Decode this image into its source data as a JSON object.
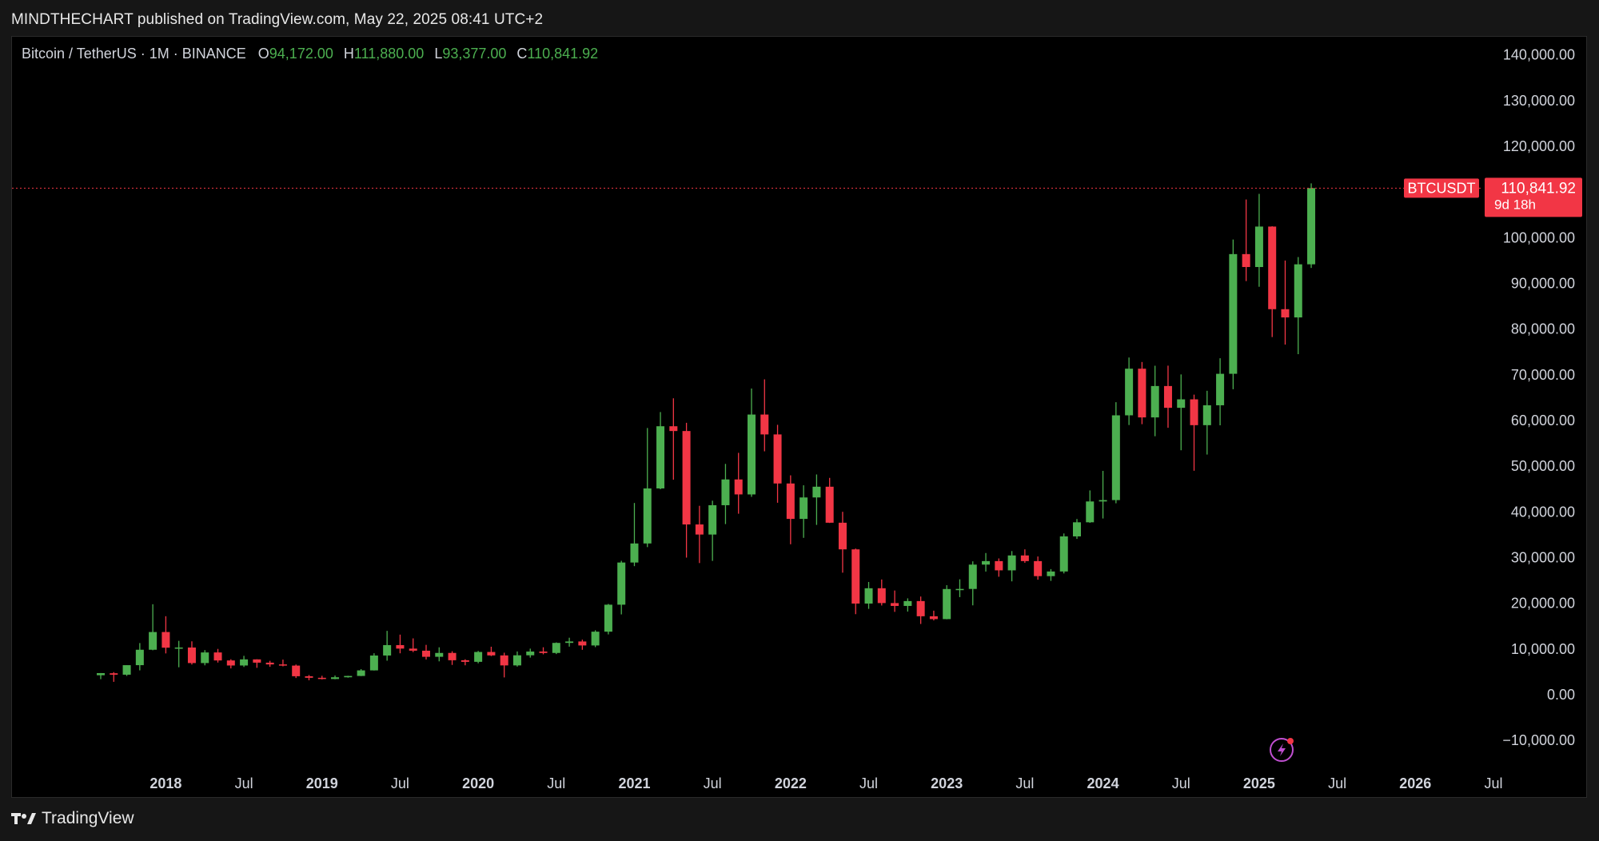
{
  "header": {
    "published_line": "MINDTHECHART published on TradingView.com, May 22, 2025 08:41 UTC+2"
  },
  "legend": {
    "symbol_line": "Bitcoin / TetherUS · 1M · BINANCE",
    "open_label": "O",
    "open_value": "94,172.00",
    "high_label": "H",
    "high_value": "111,880.00",
    "low_label": "L",
    "low_value": "93,377.00",
    "close_label": "C",
    "close_value": "110,841.92"
  },
  "price_tag": {
    "symbol": "BTCUSDT",
    "price": "110,841.92",
    "countdown": "9d 18h"
  },
  "footer": {
    "brand": "TradingView"
  },
  "colors": {
    "up": "#4caf50",
    "down": "#f23645",
    "price_line": "#f23645",
    "axis_text": "#d1d4dc",
    "background": "#000000",
    "lightning_icon": "#c04fd1"
  },
  "icons": {
    "lightning": "lightning-icon",
    "logo": "tradingview-logo-icon"
  },
  "chart_data": {
    "type": "candlestick",
    "title": "Bitcoin / TetherUS · 1M · BINANCE",
    "interval": "1M",
    "ylim": [
      -15000,
      145000
    ],
    "yticks": [
      -10000,
      0,
      10000,
      20000,
      30000,
      40000,
      50000,
      60000,
      70000,
      80000,
      90000,
      100000,
      110000,
      120000,
      130000,
      140000
    ],
    "ytick_labels": [
      "−10,000.00",
      "0.00",
      "10,000.00",
      "20,000.00",
      "30,000.00",
      "40,000.00",
      "50,000.00",
      "60,000.00",
      "70,000.00",
      "80,000.00",
      "90,000.00",
      "100,000.00",
      "110,000.00",
      "120,000.00",
      "130,000.00",
      "140,000.00"
    ],
    "x_labels": [
      {
        "label": "2018",
        "date": "2018-01",
        "bold": true
      },
      {
        "label": "Jul",
        "date": "2018-07",
        "bold": false
      },
      {
        "label": "2019",
        "date": "2019-01",
        "bold": true
      },
      {
        "label": "Jul",
        "date": "2019-07",
        "bold": false
      },
      {
        "label": "2020",
        "date": "2020-01",
        "bold": true
      },
      {
        "label": "Jul",
        "date": "2020-07",
        "bold": false
      },
      {
        "label": "2021",
        "date": "2021-01",
        "bold": true
      },
      {
        "label": "Jul",
        "date": "2021-07",
        "bold": false
      },
      {
        "label": "2022",
        "date": "2022-01",
        "bold": true
      },
      {
        "label": "Jul",
        "date": "2022-07",
        "bold": false
      },
      {
        "label": "2023",
        "date": "2023-01",
        "bold": true
      },
      {
        "label": "Jul",
        "date": "2023-07",
        "bold": false
      },
      {
        "label": "2024",
        "date": "2024-01",
        "bold": true
      },
      {
        "label": "Jul",
        "date": "2024-07",
        "bold": false
      },
      {
        "label": "2025",
        "date": "2025-01",
        "bold": true
      },
      {
        "label": "Jul",
        "date": "2025-07",
        "bold": false
      },
      {
        "label": "2026",
        "date": "2026-01",
        "bold": true
      },
      {
        "label": "Jul",
        "date": "2026-07",
        "bold": false
      }
    ],
    "last_price": 110841.92,
    "candles": [
      {
        "date": "2017-08",
        "o": 4261,
        "h": 4745,
        "l": 3400,
        "c": 4724
      },
      {
        "date": "2017-09",
        "o": 4689,
        "h": 4939,
        "l": 2817,
        "c": 4378
      },
      {
        "date": "2017-10",
        "o": 4378,
        "h": 6447,
        "l": 4110,
        "c": 6463
      },
      {
        "date": "2017-11",
        "o": 6463,
        "h": 11300,
        "l": 5325,
        "c": 9838
      },
      {
        "date": "2017-12",
        "o": 9838,
        "h": 19798,
        "l": 9722,
        "c": 13716
      },
      {
        "date": "2018-01",
        "o": 13716,
        "h": 17176,
        "l": 9035,
        "c": 10285
      },
      {
        "date": "2018-02",
        "o": 10285,
        "h": 11786,
        "l": 6000,
        "c": 10326
      },
      {
        "date": "2018-03",
        "o": 10326,
        "h": 11680,
        "l": 6600,
        "c": 6923
      },
      {
        "date": "2018-04",
        "o": 6923,
        "h": 9759,
        "l": 6425,
        "c": 9246
      },
      {
        "date": "2018-05",
        "o": 9246,
        "h": 10020,
        "l": 7032,
        "c": 7494
      },
      {
        "date": "2018-06",
        "o": 7494,
        "h": 7760,
        "l": 5755,
        "c": 6391
      },
      {
        "date": "2018-07",
        "o": 6391,
        "h": 8507,
        "l": 6072,
        "c": 7730
      },
      {
        "date": "2018-08",
        "o": 7730,
        "h": 7760,
        "l": 5880,
        "c": 7011
      },
      {
        "date": "2018-09",
        "o": 7011,
        "h": 7410,
        "l": 6100,
        "c": 6626
      },
      {
        "date": "2018-10",
        "o": 6626,
        "h": 7680,
        "l": 6205,
        "c": 6371
      },
      {
        "date": "2018-11",
        "o": 6371,
        "h": 6600,
        "l": 3652,
        "c": 4041
      },
      {
        "date": "2018-12",
        "o": 4041,
        "h": 4311,
        "l": 3156,
        "c": 3702
      },
      {
        "date": "2019-01",
        "o": 3702,
        "h": 4140,
        "l": 3349,
        "c": 3434
      },
      {
        "date": "2019-02",
        "o": 3434,
        "h": 4198,
        "l": 3373,
        "c": 3814
      },
      {
        "date": "2019-03",
        "o": 3814,
        "h": 4140,
        "l": 3733,
        "c": 4103
      },
      {
        "date": "2019-04",
        "o": 4103,
        "h": 5600,
        "l": 4067,
        "c": 5321
      },
      {
        "date": "2019-05",
        "o": 5321,
        "h": 9074,
        "l": 5290,
        "c": 8574
      },
      {
        "date": "2019-06",
        "o": 8574,
        "h": 13970,
        "l": 7444,
        "c": 10854
      },
      {
        "date": "2019-07",
        "o": 10854,
        "h": 13147,
        "l": 9060,
        "c": 10086
      },
      {
        "date": "2019-08",
        "o": 10086,
        "h": 12325,
        "l": 9320,
        "c": 9631
      },
      {
        "date": "2019-09",
        "o": 9631,
        "h": 10905,
        "l": 7710,
        "c": 8294
      },
      {
        "date": "2019-10",
        "o": 8294,
        "h": 10370,
        "l": 7300,
        "c": 9140
      },
      {
        "date": "2019-11",
        "o": 9140,
        "h": 9513,
        "l": 6515,
        "c": 7541
      },
      {
        "date": "2019-12",
        "o": 7541,
        "h": 7750,
        "l": 6435,
        "c": 7195
      },
      {
        "date": "2020-01",
        "o": 7195,
        "h": 9578,
        "l": 6871,
        "c": 9352
      },
      {
        "date": "2020-02",
        "o": 9352,
        "h": 10500,
        "l": 8445,
        "c": 8599
      },
      {
        "date": "2020-03",
        "o": 8599,
        "h": 9188,
        "l": 3782,
        "c": 6410
      },
      {
        "date": "2020-04",
        "o": 6410,
        "h": 9460,
        "l": 6150,
        "c": 8624
      },
      {
        "date": "2020-05",
        "o": 8624,
        "h": 10080,
        "l": 8117,
        "c": 9446
      },
      {
        "date": "2020-06",
        "o": 9446,
        "h": 10380,
        "l": 8833,
        "c": 9137
      },
      {
        "date": "2020-07",
        "o": 9137,
        "h": 11444,
        "l": 8893,
        "c": 11335
      },
      {
        "date": "2020-08",
        "o": 11335,
        "h": 12468,
        "l": 10518,
        "c": 11649
      },
      {
        "date": "2020-09",
        "o": 11649,
        "h": 12050,
        "l": 9825,
        "c": 10776
      },
      {
        "date": "2020-10",
        "o": 10776,
        "h": 14100,
        "l": 10416,
        "c": 13791
      },
      {
        "date": "2020-11",
        "o": 13791,
        "h": 19863,
        "l": 13195,
        "c": 19695
      },
      {
        "date": "2020-12",
        "o": 19695,
        "h": 29300,
        "l": 17572,
        "c": 28923
      },
      {
        "date": "2021-01",
        "o": 28923,
        "h": 41950,
        "l": 28130,
        "c": 33092
      },
      {
        "date": "2021-02",
        "o": 33092,
        "h": 58352,
        "l": 32296,
        "c": 45135
      },
      {
        "date": "2021-03",
        "o": 45134,
        "h": 61844,
        "l": 44950,
        "c": 58740
      },
      {
        "date": "2021-04",
        "o": 58739,
        "h": 64854,
        "l": 47044,
        "c": 57694
      },
      {
        "date": "2021-05",
        "o": 57697,
        "h": 59500,
        "l": 30000,
        "c": 37253
      },
      {
        "date": "2021-06",
        "o": 37253,
        "h": 41330,
        "l": 28805,
        "c": 35045
      },
      {
        "date": "2021-07",
        "o": 35045,
        "h": 42448,
        "l": 29278,
        "c": 41461
      },
      {
        "date": "2021-08",
        "o": 41461,
        "h": 50500,
        "l": 37332,
        "c": 47100
      },
      {
        "date": "2021-09",
        "o": 47100,
        "h": 52920,
        "l": 39600,
        "c": 43824
      },
      {
        "date": "2021-10",
        "o": 43820,
        "h": 67000,
        "l": 43283,
        "c": 61300
      },
      {
        "date": "2021-11",
        "o": 61300,
        "h": 69000,
        "l": 53256,
        "c": 56950
      },
      {
        "date": "2021-12",
        "o": 56950,
        "h": 59053,
        "l": 42000,
        "c": 46216
      },
      {
        "date": "2022-01",
        "o": 46216,
        "h": 48000,
        "l": 32917,
        "c": 38466
      },
      {
        "date": "2022-02",
        "o": 38466,
        "h": 45821,
        "l": 34322,
        "c": 43160
      },
      {
        "date": "2022-03",
        "o": 43160,
        "h": 48189,
        "l": 37155,
        "c": 45510
      },
      {
        "date": "2022-04",
        "o": 45510,
        "h": 47444,
        "l": 37578,
        "c": 37630
      },
      {
        "date": "2022-05",
        "o": 37630,
        "h": 40023,
        "l": 26700,
        "c": 31802
      },
      {
        "date": "2022-06",
        "o": 31802,
        "h": 31982,
        "l": 17622,
        "c": 19942
      },
      {
        "date": "2022-07",
        "o": 19942,
        "h": 24668,
        "l": 18781,
        "c": 23293
      },
      {
        "date": "2022-08",
        "o": 23296,
        "h": 25211,
        "l": 19520,
        "c": 20050
      },
      {
        "date": "2022-09",
        "o": 20048,
        "h": 22799,
        "l": 18125,
        "c": 19422
      },
      {
        "date": "2022-10",
        "o": 19423,
        "h": 21085,
        "l": 18190,
        "c": 20490
      },
      {
        "date": "2022-11",
        "o": 20490,
        "h": 21480,
        "l": 15476,
        "c": 17164
      },
      {
        "date": "2022-12",
        "o": 17165,
        "h": 18387,
        "l": 16256,
        "c": 16542
      },
      {
        "date": "2023-01",
        "o": 16542,
        "h": 23960,
        "l": 16500,
        "c": 23125
      },
      {
        "date": "2023-02",
        "o": 23125,
        "h": 25250,
        "l": 21351,
        "c": 23141
      },
      {
        "date": "2023-03",
        "o": 23141,
        "h": 29184,
        "l": 19549,
        "c": 28465
      },
      {
        "date": "2023-04",
        "o": 28465,
        "h": 31000,
        "l": 26942,
        "c": 29233
      },
      {
        "date": "2023-05",
        "o": 29233,
        "h": 29820,
        "l": 25811,
        "c": 27210
      },
      {
        "date": "2023-06",
        "o": 27210,
        "h": 31431,
        "l": 24800,
        "c": 30472
      },
      {
        "date": "2023-07",
        "o": 30472,
        "h": 31804,
        "l": 28861,
        "c": 29232
      },
      {
        "date": "2023-08",
        "o": 29232,
        "h": 30244,
        "l": 25166,
        "c": 25941
      },
      {
        "date": "2023-09",
        "o": 25941,
        "h": 27483,
        "l": 24901,
        "c": 26962
      },
      {
        "date": "2023-10",
        "o": 26962,
        "h": 35280,
        "l": 26538,
        "c": 34639
      },
      {
        "date": "2023-11",
        "o": 34639,
        "h": 38450,
        "l": 34097,
        "c": 37723
      },
      {
        "date": "2023-12",
        "o": 37723,
        "h": 44700,
        "l": 37612,
        "c": 42283
      },
      {
        "date": "2024-01",
        "o": 42283,
        "h": 48969,
        "l": 38555,
        "c": 42580
      },
      {
        "date": "2024-02",
        "o": 42580,
        "h": 64000,
        "l": 41884,
        "c": 61130
      },
      {
        "date": "2024-03",
        "o": 61130,
        "h": 73777,
        "l": 59005,
        "c": 71333
      },
      {
        "date": "2024-04",
        "o": 71334,
        "h": 72797,
        "l": 59191,
        "c": 60672
      },
      {
        "date": "2024-05",
        "o": 60672,
        "h": 71979,
        "l": 56552,
        "c": 67540
      },
      {
        "date": "2024-06",
        "o": 67540,
        "h": 71997,
        "l": 58402,
        "c": 62772
      },
      {
        "date": "2024-07",
        "o": 62773,
        "h": 70080,
        "l": 53485,
        "c": 64628
      },
      {
        "date": "2024-08",
        "o": 64628,
        "h": 65659,
        "l": 49000,
        "c": 58974
      },
      {
        "date": "2024-09",
        "o": 58974,
        "h": 66498,
        "l": 52550,
        "c": 63327
      },
      {
        "date": "2024-10",
        "o": 63327,
        "h": 73620,
        "l": 58946,
        "c": 70215
      },
      {
        "date": "2024-11",
        "o": 70215,
        "h": 99588,
        "l": 66835,
        "c": 96407
      },
      {
        "date": "2024-12",
        "o": 96407,
        "h": 108353,
        "l": 90500,
        "c": 93576
      },
      {
        "date": "2025-01",
        "o": 93576,
        "h": 109588,
        "l": 89256,
        "c": 102430
      },
      {
        "date": "2025-02",
        "o": 102430,
        "h": 102500,
        "l": 78258,
        "c": 84350
      },
      {
        "date": "2025-03",
        "o": 84350,
        "h": 95000,
        "l": 76606,
        "c": 82550
      },
      {
        "date": "2025-04",
        "o": 82550,
        "h": 95758,
        "l": 74508,
        "c": 94172
      },
      {
        "date": "2025-05",
        "o": 94172,
        "h": 111880,
        "l": 93377,
        "c": 110841.92
      }
    ]
  }
}
